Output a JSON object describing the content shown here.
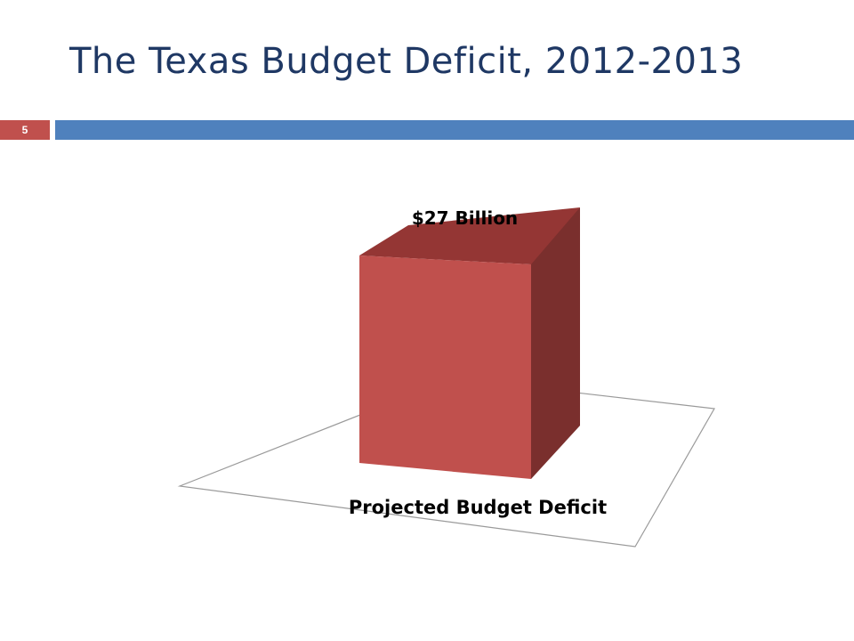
{
  "slide": {
    "title": "The Texas Budget Deficit, 2012-2013",
    "number": "5"
  },
  "colors": {
    "title": "#1f3864",
    "bar_front": "#c0504d",
    "bar_top": "#943634",
    "bar_side": "#7a2f2d",
    "number_badge": "#c0504d",
    "title_bar": "#4f81bd"
  },
  "chart_data": {
    "type": "bar",
    "style": "3d",
    "categories": [
      "Projected Budget Deficit"
    ],
    "series": [
      {
        "values": [
          27
        ],
        "data_labels": [
          "$27 Billion"
        ]
      }
    ],
    "ylim": [
      0,
      27
    ],
    "grid": false,
    "legend": "none"
  }
}
